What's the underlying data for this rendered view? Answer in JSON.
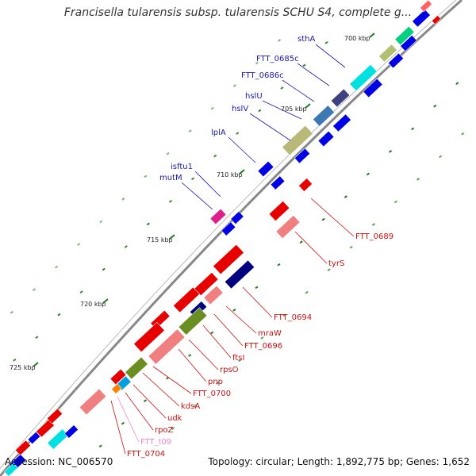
{
  "title": "Francisella tularensis subsp. tularensis SCHU S4, complete g...",
  "footer": {
    "accession": "Accession: NC_006570",
    "summary": "Topology: circular; Length: 1,892,775 bp; Genes: 1,652"
  },
  "colors": {
    "plus_strand": "#0000e6",
    "minus_strand": "#e60000",
    "plus_label": "#1a1aa6",
    "minus_label": "#cc1111",
    "trna_label": "#ee88cc",
    "backbone": "#888888",
    "gc_tick": "#1f7a1f"
  },
  "kbp_ticks": [
    "700 kbp",
    "705 kbp",
    "710 kbp",
    "715 kbp",
    "720 kbp",
    "725 kbp"
  ],
  "upper_labels": [
    "sthA",
    "FTT_0685c",
    "FTT_0686c",
    "hslU",
    "hslV",
    "lplA",
    "isftu1",
    "mutM"
  ],
  "lower_labels": [
    "FTT_0689",
    "tyrS",
    "FTT_0694",
    "mraW",
    "FTT_0696",
    "ftsI",
    "rpsO",
    "pnp",
    "FTT_0700",
    "kdsA",
    "udk",
    "rpoZ",
    "FTT_t09",
    "FTT_0704"
  ]
}
